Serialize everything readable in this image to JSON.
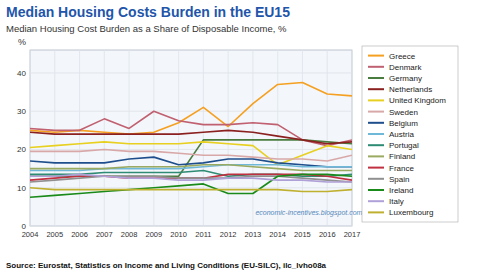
{
  "chart_data": {
    "type": "line",
    "title": "Median Housing Costs Burden in the EU15",
    "subtitle": "Median Housing Cost Burden as a Share of Disposable Income, %",
    "ylabel": "%",
    "source": "Source: Eurostat, Statistics on Income and Living Conditions (EU-SILC), ilc_lvho08a",
    "annotations": [
      "economic-incentives.blogspot.com"
    ],
    "x": [
      2004,
      2005,
      2006,
      2007,
      2008,
      2009,
      2010,
      2011,
      2012,
      2013,
      2014,
      2015,
      2016,
      2017
    ],
    "xlim": [
      2004,
      2017
    ],
    "xticks": [
      2004,
      2005,
      2006,
      2007,
      2008,
      2009,
      2010,
      2011,
      2012,
      2013,
      2014,
      2015,
      2016,
      2017
    ],
    "ylim": [
      0,
      46
    ],
    "yticks": [
      0,
      10,
      20,
      30,
      40
    ],
    "grid": true,
    "legend": "right",
    "series": [
      {
        "name": "Greece",
        "color": "#f5a020",
        "values": [
          25.0,
          24.5,
          25.0,
          24.5,
          24.0,
          24.5,
          27.0,
          31.0,
          26.0,
          32.0,
          37.0,
          37.5,
          34.5,
          34.0
        ]
      },
      {
        "name": "Denmark",
        "color": "#c06070",
        "values": [
          25.5,
          25.0,
          25.0,
          28.0,
          25.5,
          30.0,
          27.5,
          26.5,
          26.5,
          27.0,
          26.5,
          22.5,
          21.0,
          22.5
        ]
      },
      {
        "name": "Germany",
        "color": "#4a7c3f",
        "values": [
          13.0,
          13.0,
          13.0,
          13.0,
          13.0,
          13.0,
          13.0,
          22.5,
          22.5,
          22.5,
          22.5,
          22.5,
          22.0,
          21.5
        ]
      },
      {
        "name": "Netherlands",
        "color": "#8b2020",
        "values": [
          24.5,
          24.0,
          24.0,
          24.0,
          24.0,
          24.0,
          24.0,
          24.5,
          25.0,
          24.5,
          23.5,
          22.5,
          21.5,
          22.0
        ]
      },
      {
        "name": "United Kingdom",
        "color": "#e8d020",
        "values": [
          20.5,
          21.0,
          21.5,
          22.0,
          21.5,
          21.5,
          21.5,
          22.0,
          21.5,
          21.0,
          16.0,
          18.5,
          21.0,
          20.0
        ]
      },
      {
        "name": "Sweden",
        "color": "#d8a8a8",
        "values": [
          19.5,
          19.5,
          19.5,
          20.0,
          19.5,
          19.5,
          19.0,
          18.5,
          18.5,
          18.0,
          17.5,
          17.5,
          17.0,
          18.5
        ]
      },
      {
        "name": "Belgium",
        "color": "#1f4e8c",
        "values": [
          17.0,
          16.5,
          16.5,
          16.5,
          17.5,
          18.0,
          16.0,
          16.5,
          17.5,
          17.5,
          16.5,
          16.0,
          15.5,
          15.5
        ]
      },
      {
        "name": "Austria",
        "color": "#70b8d8",
        "values": [
          14.5,
          14.5,
          14.5,
          15.0,
          15.0,
          15.0,
          15.0,
          15.5,
          16.0,
          16.0,
          16.0,
          15.5,
          15.5,
          15.5
        ]
      },
      {
        "name": "Portugal",
        "color": "#2e8b74",
        "values": [
          13.5,
          13.5,
          13.5,
          14.0,
          14.0,
          14.0,
          14.0,
          14.5,
          13.0,
          13.5,
          13.5,
          13.0,
          13.0,
          13.5
        ]
      },
      {
        "name": "Finland",
        "color": "#9aaa60",
        "values": [
          15.0,
          15.0,
          15.0,
          15.0,
          15.5,
          15.5,
          15.5,
          16.0,
          16.0,
          15.5,
          15.0,
          14.5,
          14.5,
          14.5
        ]
      },
      {
        "name": "France",
        "color": "#c03040",
        "values": [
          12.0,
          12.5,
          13.0,
          13.0,
          12.5,
          12.5,
          12.5,
          12.5,
          13.5,
          13.5,
          13.5,
          13.5,
          13.0,
          12.0
        ]
      },
      {
        "name": "Spain",
        "color": "#909090",
        "values": [
          11.5,
          12.0,
          12.5,
          13.0,
          13.0,
          13.0,
          12.5,
          12.5,
          12.5,
          13.0,
          13.0,
          12.5,
          12.0,
          11.5
        ]
      },
      {
        "name": "Ireland",
        "color": "#1a8a1a",
        "values": [
          7.5,
          8.0,
          8.5,
          9.0,
          9.5,
          10.0,
          10.5,
          11.0,
          8.5,
          8.5,
          13.0,
          13.5,
          13.5,
          13.0
        ]
      },
      {
        "name": "Italy",
        "color": "#b0a0d8",
        "values": [
          13.0,
          13.0,
          13.5,
          13.0,
          12.5,
          12.5,
          12.0,
          12.0,
          12.5,
          12.5,
          12.0,
          12.0,
          11.5,
          11.5
        ]
      },
      {
        "name": "Luxembourg",
        "color": "#c0b030",
        "values": [
          10.0,
          9.5,
          9.5,
          9.5,
          9.5,
          9.5,
          9.5,
          9.5,
          9.5,
          9.5,
          9.5,
          9.0,
          9.0,
          9.5
        ]
      }
    ]
  }
}
